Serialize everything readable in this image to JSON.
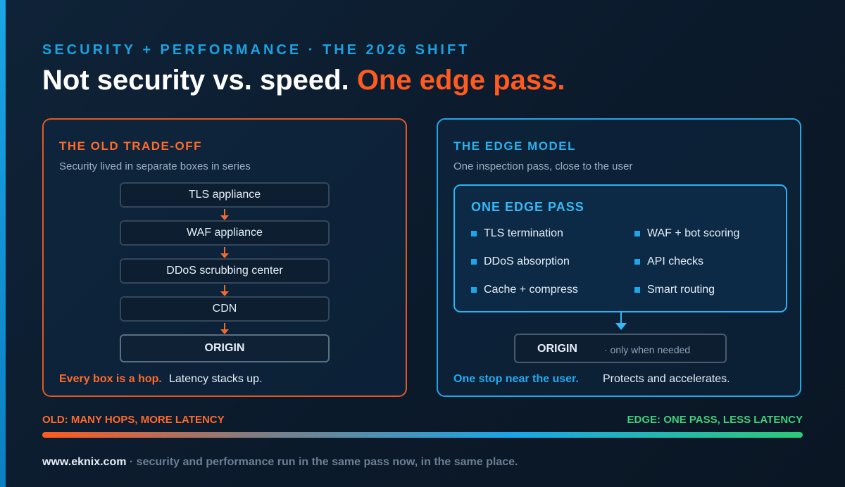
{
  "eyebrow": "SECURITY + PERFORMANCE · THE 2026 SHIFT",
  "headline": {
    "main": "Not security vs. speed.",
    "highlight": "One edge pass."
  },
  "old_panel": {
    "title": "THE OLD TRADE-OFF",
    "subtitle": "Security lived in separate boxes in series",
    "stages": [
      "TLS appliance",
      "WAF appliance",
      "DDoS scrubbing center",
      "CDN",
      "ORIGIN"
    ],
    "footnote_strong": "Every box is a hop.",
    "footnote_rest": "Latency stacks up."
  },
  "edge_panel": {
    "title": "THE EDGE MODEL",
    "subtitle": "One inspection pass, close to the user",
    "inner_title": "ONE EDGE PASS",
    "features": [
      "TLS termination",
      "WAF + bot scoring",
      "DDoS absorption",
      "API checks",
      "Cache + compress",
      "Smart routing"
    ],
    "origin_label": "ORIGIN",
    "origin_note": "· only when needed",
    "footnote_strong": "One stop near the user.",
    "footnote_rest": "Protects and accelerates."
  },
  "scale": {
    "left_label": "OLD: MANY HOPS, MORE LATENCY",
    "right_label": "EDGE: ONE PASS, LESS LATENCY"
  },
  "footer": {
    "site": "www.eknix.com",
    "message": "· security and performance run in the same pass now, in the same place."
  },
  "colors": {
    "old_accent": "#ff5a1f",
    "edge_accent": "#1da6ea",
    "good": "#3fd07a"
  }
}
